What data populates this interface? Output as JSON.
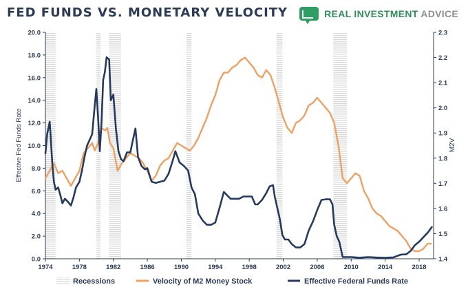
{
  "header": {
    "title": "FED FUNDS VS. MONETARY VELOCITY",
    "brand_primary": "REAL INVESTMENT",
    "brand_secondary": "ADVICE",
    "brand_icon": "chart-bubble-icon"
  },
  "colors": {
    "title": "#2b3a55",
    "brand": "#2f8f5a",
    "fed_funds": "#243a5e",
    "velocity": "#f0a060",
    "recession": "#d9d9d9"
  },
  "chart_data": {
    "type": "line",
    "title": "FED FUNDS VS. MONETARY VELOCITY",
    "ylabel_left": "Effective Fed Funds Rate",
    "ylabel_right": "M2V",
    "xlim": [
      1974,
      2019.7
    ],
    "ylim_left": [
      0.0,
      20.0
    ],
    "ylim_right": [
      1.4,
      2.3
    ],
    "x_ticks": [
      1974,
      1978,
      1982,
      1986,
      1990,
      1994,
      1998,
      2002,
      2006,
      2010,
      2014,
      2018
    ],
    "x_tick_labels": [
      "1974",
      "1978",
      "1982",
      "1986",
      "1990",
      "1994",
      "1998",
      "2002",
      "2006",
      "2010",
      "2014",
      "2018"
    ],
    "y_left_ticks": [
      "0.0",
      "2.0",
      "4.0",
      "6.0",
      "8.0",
      "10.0",
      "12.0",
      "14.0",
      "16.0",
      "18.0",
      "20.0"
    ],
    "y_right_ticks": [
      "1.4",
      "1.5",
      "1.6",
      "1.7",
      "1.8",
      "1.9",
      "2.0",
      "2.1",
      "2.2",
      "2.3"
    ],
    "recessions": [
      [
        1974.0,
        1975.2
      ],
      [
        1980.0,
        1980.5
      ],
      [
        1981.5,
        1982.9
      ],
      [
        1990.6,
        1991.2
      ],
      [
        2001.2,
        2001.9
      ],
      [
        2007.9,
        2009.5
      ]
    ],
    "legend": [
      "Recessions",
      "Velocity of M2 Money Stock",
      "Effective Federal Funds Rate"
    ],
    "series": [
      {
        "name": "Effective Federal Funds Rate",
        "axis": "left",
        "x": [
          1974.0,
          1974.2,
          1974.5,
          1974.6,
          1974.8,
          1975.0,
          1975.2,
          1975.5,
          1975.8,
          1976.0,
          1976.3,
          1976.7,
          1977.0,
          1977.3,
          1977.6,
          1978.0,
          1978.3,
          1978.6,
          1978.9,
          1979.2,
          1979.5,
          1979.8,
          1980.0,
          1980.2,
          1980.4,
          1980.6,
          1980.8,
          1981.0,
          1981.2,
          1981.5,
          1981.7,
          1982.0,
          1982.3,
          1982.6,
          1982.9,
          1983.2,
          1983.6,
          1984.0,
          1984.3,
          1984.6,
          1984.9,
          1985.3,
          1985.7,
          1986.0,
          1986.5,
          1987.0,
          1987.5,
          1988.0,
          1988.5,
          1989.0,
          1989.3,
          1989.8,
          1990.3,
          1990.8,
          1991.2,
          1991.6,
          1992.0,
          1992.5,
          1993.0,
          1993.5,
          1994.0,
          1994.5,
          1995.0,
          1995.4,
          1995.8,
          1996.3,
          1996.8,
          1997.3,
          1997.8,
          1998.3,
          1998.7,
          1999.0,
          1999.5,
          2000.0,
          2000.4,
          2000.8,
          2001.0,
          2001.3,
          2001.6,
          2001.9,
          2002.2,
          2002.6,
          2003.0,
          2003.5,
          2004.0,
          2004.5,
          2005.0,
          2005.5,
          2006.0,
          2006.5,
          2007.0,
          2007.5,
          2007.8,
          2008.0,
          2008.3,
          2008.6,
          2009.0,
          2010.0,
          2011.0,
          2012.0,
          2013.0,
          2014.0,
          2015.0,
          2015.8,
          2016.5,
          2017.0,
          2017.5,
          2018.0,
          2018.5,
          2019.0,
          2019.5
        ],
        "values": [
          9.3,
          11.0,
          12.1,
          11.0,
          8.5,
          6.8,
          6.1,
          6.3,
          5.5,
          4.9,
          5.3,
          5.0,
          4.7,
          5.4,
          6.3,
          6.8,
          7.8,
          9.0,
          10.0,
          10.5,
          11.0,
          13.5,
          15.0,
          12.5,
          9.5,
          12.0,
          15.8,
          16.5,
          17.8,
          17.6,
          14.0,
          14.5,
          11.5,
          9.5,
          8.8,
          8.6,
          9.4,
          9.4,
          10.5,
          11.5,
          9.0,
          8.2,
          7.9,
          8.0,
          6.8,
          6.7,
          6.8,
          6.9,
          7.5,
          8.7,
          9.5,
          8.5,
          8.2,
          7.8,
          6.3,
          5.7,
          4.0,
          3.4,
          3.0,
          3.0,
          3.2,
          4.5,
          5.9,
          5.6,
          5.3,
          5.3,
          5.3,
          5.5,
          5.5,
          5.5,
          4.8,
          4.8,
          5.2,
          5.8,
          6.4,
          6.5,
          5.5,
          4.5,
          3.5,
          2.1,
          1.7,
          1.7,
          1.3,
          1.0,
          1.0,
          1.3,
          2.5,
          3.3,
          4.3,
          5.2,
          5.25,
          5.25,
          4.8,
          3.0,
          2.0,
          1.5,
          0.16,
          0.15,
          0.1,
          0.15,
          0.11,
          0.09,
          0.13,
          0.36,
          0.4,
          0.7,
          1.2,
          1.5,
          1.9,
          2.3,
          2.8
        ]
      },
      {
        "name": "Velocity of M2 Money Stock",
        "axis": "right",
        "x": [
          1974.0,
          1974.5,
          1975.0,
          1975.5,
          1976.0,
          1976.5,
          1977.0,
          1977.5,
          1978.0,
          1978.5,
          1979.0,
          1979.5,
          1979.8,
          1980.2,
          1980.6,
          1981.0,
          1981.3,
          1981.6,
          1982.0,
          1982.5,
          1983.0,
          1983.5,
          1984.0,
          1984.5,
          1985.0,
          1985.5,
          1986.0,
          1986.5,
          1987.0,
          1987.5,
          1988.0,
          1988.5,
          1989.0,
          1989.5,
          1990.0,
          1990.5,
          1991.0,
          1991.5,
          1992.0,
          1992.5,
          1993.0,
          1993.5,
          1994.0,
          1994.5,
          1995.0,
          1995.5,
          1996.0,
          1996.5,
          1997.0,
          1997.5,
          1998.0,
          1998.5,
          1999.0,
          1999.5,
          2000.0,
          2000.5,
          2001.0,
          2001.5,
          2002.0,
          2002.5,
          2003.0,
          2003.5,
          2004.0,
          2004.5,
          2005.0,
          2005.5,
          2006.0,
          2006.5,
          2007.0,
          2007.5,
          2008.0,
          2008.5,
          2009.0,
          2009.5,
          2010.0,
          2010.5,
          2011.0,
          2011.5,
          2012.0,
          2012.5,
          2013.0,
          2013.5,
          2014.0,
          2014.5,
          2015.0,
          2015.5,
          2016.0,
          2016.5,
          2017.0,
          2017.5,
          2018.0,
          2018.5,
          2019.0,
          2019.4
        ],
        "values": [
          1.72,
          1.75,
          1.78,
          1.74,
          1.75,
          1.72,
          1.69,
          1.72,
          1.75,
          1.82,
          1.84,
          1.86,
          1.83,
          1.86,
          1.92,
          1.91,
          1.92,
          1.86,
          1.84,
          1.75,
          1.78,
          1.8,
          1.82,
          1.81,
          1.8,
          1.78,
          1.75,
          1.71,
          1.73,
          1.77,
          1.79,
          1.8,
          1.83,
          1.86,
          1.85,
          1.84,
          1.83,
          1.85,
          1.88,
          1.92,
          1.96,
          2.01,
          2.05,
          2.11,
          2.14,
          2.14,
          2.16,
          2.17,
          2.19,
          2.2,
          2.18,
          2.16,
          2.13,
          2.12,
          2.15,
          2.13,
          2.08,
          2.02,
          1.96,
          1.92,
          1.9,
          1.94,
          1.95,
          1.97,
          2.01,
          2.02,
          2.04,
          2.02,
          2.0,
          1.98,
          1.94,
          1.85,
          1.72,
          1.7,
          1.72,
          1.74,
          1.73,
          1.67,
          1.64,
          1.6,
          1.58,
          1.57,
          1.55,
          1.53,
          1.52,
          1.51,
          1.49,
          1.47,
          1.44,
          1.43,
          1.43,
          1.44,
          1.46,
          1.46
        ]
      }
    ]
  }
}
